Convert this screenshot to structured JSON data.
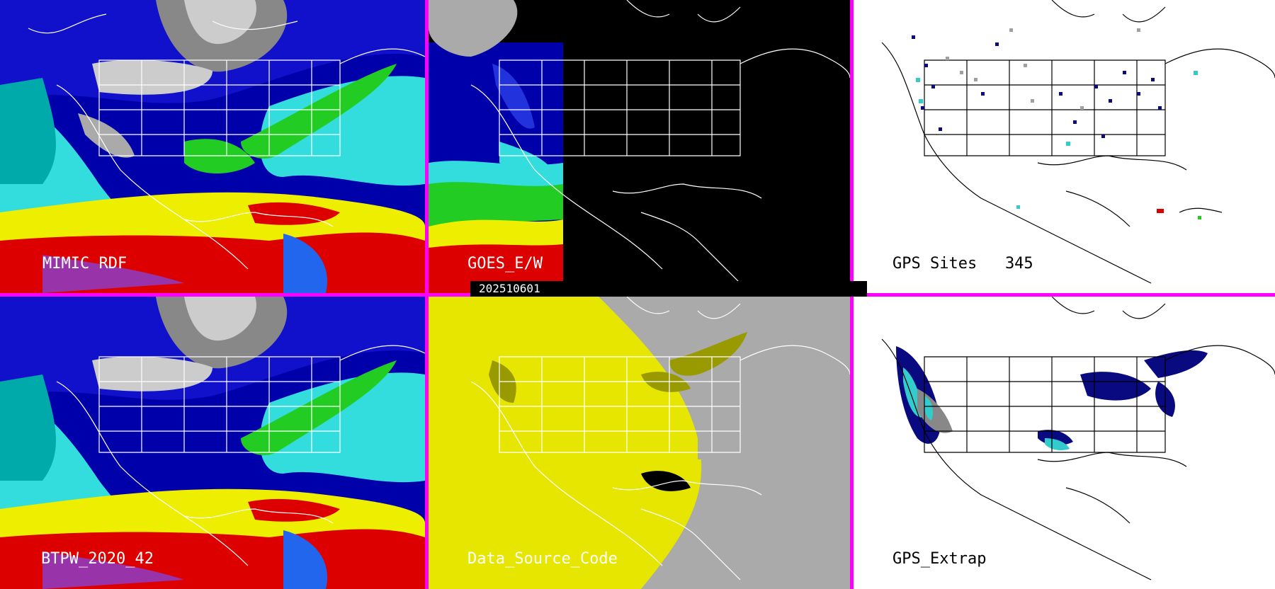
{
  "panels": [
    {
      "id": "p1",
      "label": "MIMIC RDF",
      "label_color": "#ffffff",
      "background": "satellite",
      "row": 0,
      "col": 0
    },
    {
      "id": "p2",
      "label": "GOES_E/W",
      "label_color": "#ffffff",
      "background": "goes",
      "row": 0,
      "col": 1
    },
    {
      "id": "p3",
      "label": "GPS Sites   345",
      "label_color": "#000000",
      "background": "white",
      "row": 0,
      "col": 2
    },
    {
      "id": "p4",
      "label": "BTPW_2020_42",
      "label_color": "#ffffff",
      "background": "satellite",
      "row": 1,
      "col": 0
    },
    {
      "id": "p5",
      "label": "Data_Source_Code",
      "label_color": "#ffffff",
      "background": "gray-yellow",
      "row": 1,
      "col": 1
    },
    {
      "id": "p6",
      "label": "GPS_Extrap",
      "label_color": "#000000",
      "background": "white",
      "row": 1,
      "col": 2
    }
  ],
  "date_label": "202510601",
  "colors": {
    "divider": "#ff00ff",
    "ocean_deep": "#0000aa",
    "moisture_cyan": "#33dddd",
    "moisture_green": "#22cc22",
    "moisture_yellow": "#eeee00",
    "moisture_red": "#dd0000",
    "moisture_purple": "#9933aa",
    "dry_gray": "#aaaaaa",
    "source_yellow": "#e6e600",
    "source_olive": "#999900",
    "source_gray": "#aaaaaa",
    "gps_navy": "#0a0a80",
    "gps_cyan": "#33cccc",
    "gps_gray": "#a0a0a0"
  }
}
